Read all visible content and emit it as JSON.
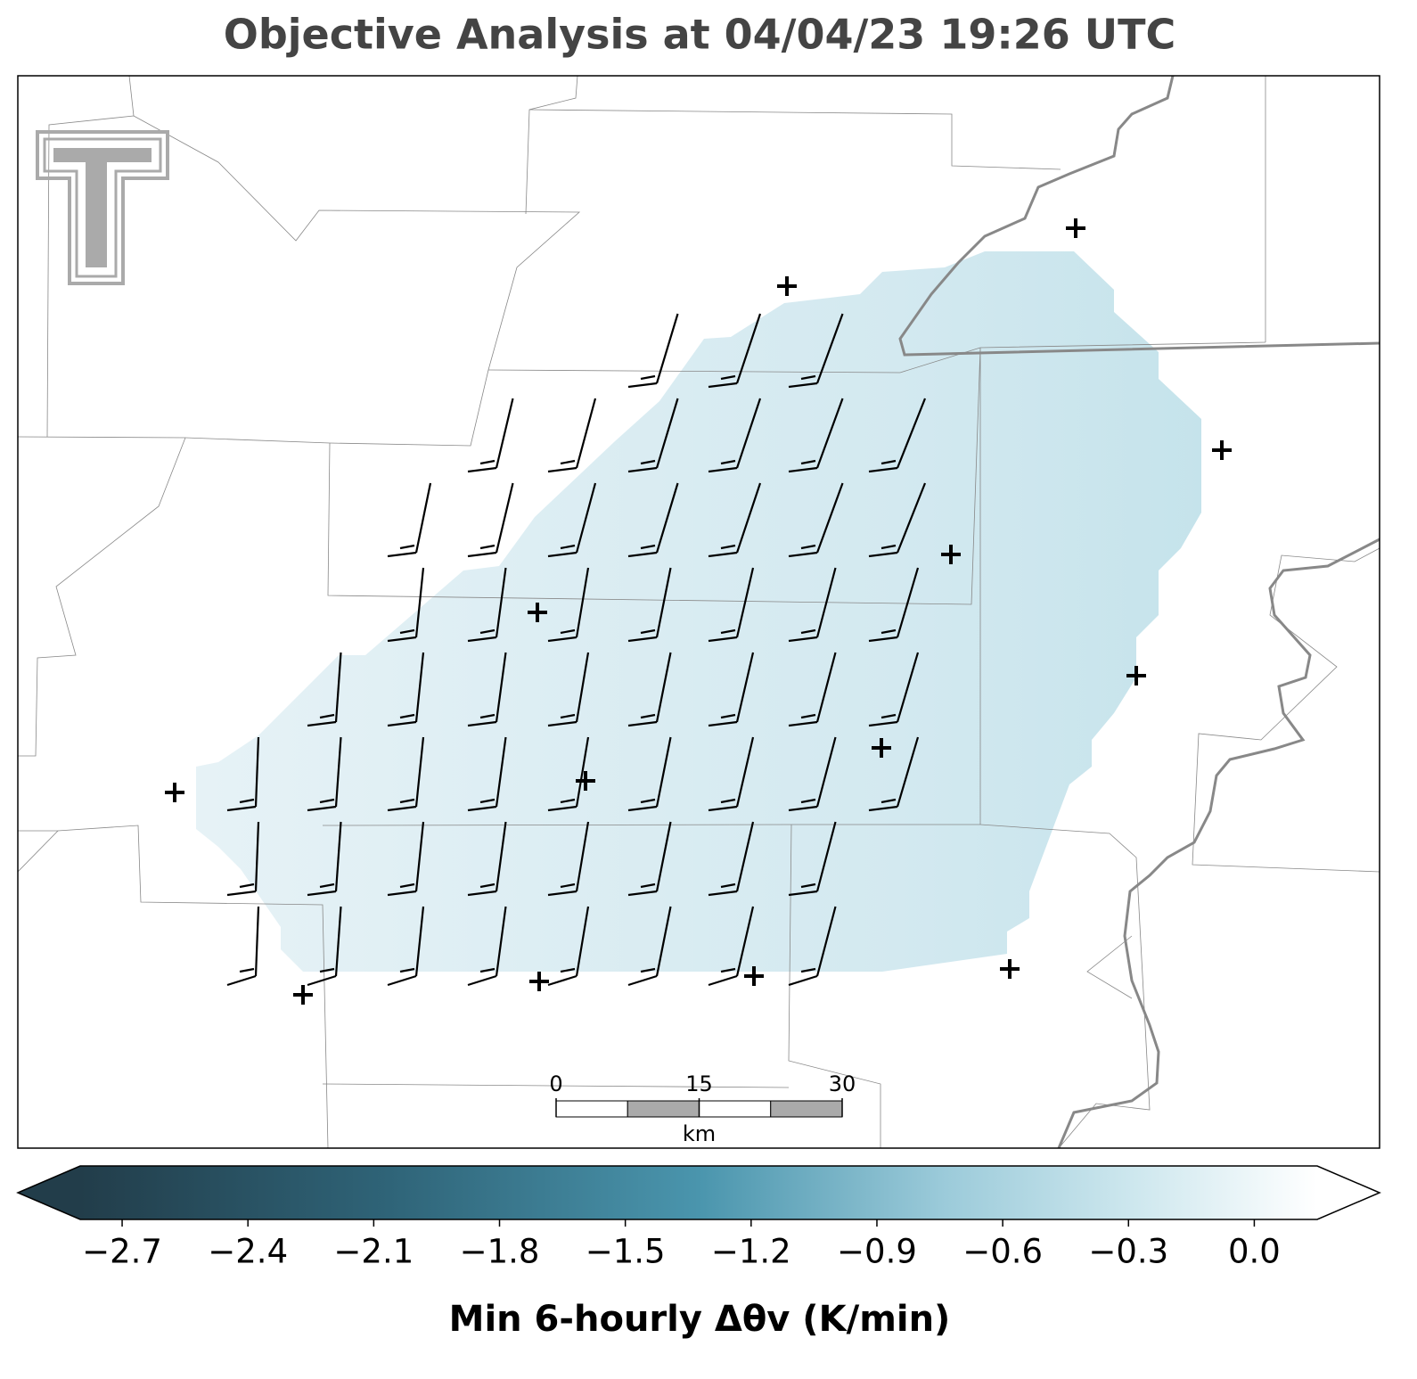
{
  "title": "Objective Analysis at 04/04/23 19:26 UTC",
  "scale_bar": {
    "ticks": [
      0,
      15,
      30
    ],
    "unit": "km"
  },
  "colorbar": {
    "label": "Min 6-hourly Δθv (K/min)",
    "lim": [
      -2.8,
      0.15
    ],
    "extend": "both",
    "ticks": [
      {
        "value": -2.7,
        "label": "−2.7"
      },
      {
        "value": -2.4,
        "label": "−2.4"
      },
      {
        "value": -2.1,
        "label": "−2.1"
      },
      {
        "value": -1.8,
        "label": "−1.8"
      },
      {
        "value": -1.5,
        "label": "−1.5"
      },
      {
        "value": -1.2,
        "label": "−1.2"
      },
      {
        "value": -0.9,
        "label": "−0.9"
      },
      {
        "value": -0.6,
        "label": "−0.6"
      },
      {
        "value": -0.3,
        "label": "−0.3"
      },
      {
        "value": 0.0,
        "label": "0.0"
      }
    ]
  }
}
